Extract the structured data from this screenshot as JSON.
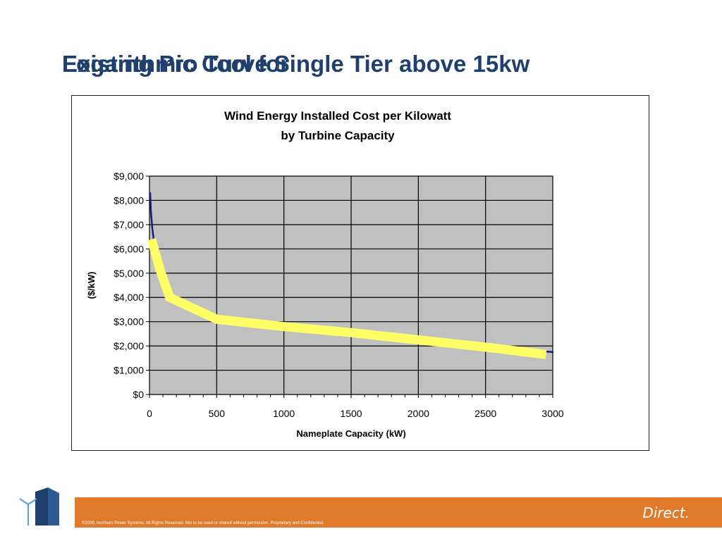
{
  "slide": {
    "title_overlap_a": "Existing Pro Tool for",
    "title_overlap_b": "Logarithmic Curve Single Tier above 15kw"
  },
  "chart_data": {
    "type": "line",
    "title": "Wind Energy Installed Cost per Kilowatt",
    "subtitle": "by Turbine Capacity",
    "xlabel": "Nameplate Capacity (kW)",
    "ylabel": "($/kW)",
    "xlim": [
      0,
      3000
    ],
    "ylim": [
      0,
      9000
    ],
    "x_ticks": [
      0,
      500,
      1000,
      1500,
      2000,
      2500,
      3000
    ],
    "y_ticks": [
      0,
      1000,
      2000,
      3000,
      4000,
      5000,
      6000,
      7000,
      8000,
      9000
    ],
    "y_tick_labels": [
      "$0",
      "$1,000",
      "$2,000",
      "$3,000",
      "$4,000",
      "$5,000",
      "$6,000",
      "$7,000",
      "$8,000",
      "$9,000"
    ],
    "grid": true,
    "plot_background": "#c0c0c0",
    "series": [
      {
        "color": "#1a1a80",
        "x": [
          5,
          10,
          20,
          40,
          75,
          150,
          250,
          500,
          1000,
          1500,
          2000,
          2500,
          3000
        ],
        "y": [
          8300,
          7600,
          6900,
          6000,
          5000,
          4100,
          3700,
          3200,
          2850,
          2550,
          2250,
          1950,
          1750
        ]
      },
      {
        "color": "#ffff66",
        "x": [
          15,
          75,
          150,
          500,
          1000,
          1500,
          2000,
          2500,
          2950
        ],
        "y": [
          6400,
          5200,
          4000,
          3100,
          2800,
          2550,
          2250,
          1950,
          1650
        ]
      }
    ]
  },
  "footer": {
    "brand": "Direct.",
    "legal": "©2009, Northern Power Systems. All Rights Reserved.   Not to be used or shared without permission. Proprietary and Confidential."
  },
  "colors": {
    "title": "#1f3f6f",
    "footer_bar": "#e07a2b",
    "logo_navy": "#1f3f6f"
  }
}
